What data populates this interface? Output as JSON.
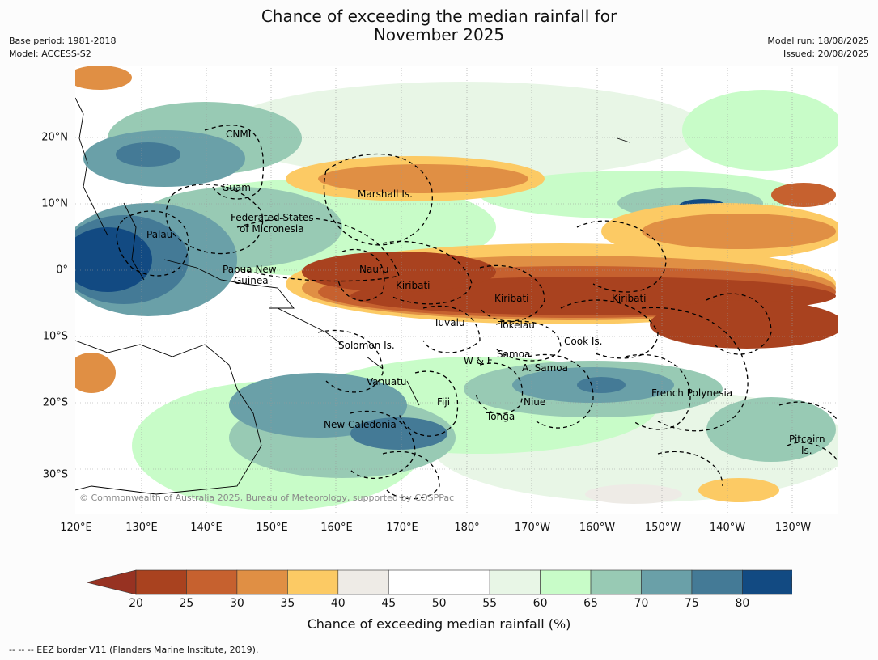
{
  "title_line1": "Chance of exceeding the median rainfall for",
  "title_line2": "November 2025",
  "base_period": "Base period: 1981-2018",
  "model": "Model: ACCESS-S2",
  "model_run": "Model run: 18/08/2025",
  "issued": "Issued: 20/08/2025",
  "lon_ticks": [
    "120°E",
    "130°E",
    "140°E",
    "150°E",
    "160°E",
    "170°E",
    "180°",
    "170°W",
    "160°W",
    "150°W",
    "140°W",
    "130°W"
  ],
  "lat_ticks": [
    "20°N",
    "10°N",
    "0°",
    "10°S",
    "20°S",
    "30°S"
  ],
  "region_labels": [
    "CNMI",
    "Guam",
    "Marshall Is.",
    "Federated States",
    "of Micronesia",
    "Palau",
    "Nauru",
    "Papua New",
    "Guinea",
    "Kiribati",
    "Kiribati",
    "Kiribati",
    "Tuvalu",
    "Tokelau",
    "Cook Is.",
    "Solomon Is.",
    "Samoa",
    "W & F",
    "A. Samoa",
    "Vanuatu",
    "Fiji",
    "Niue",
    "Tonga",
    "French Polynesia",
    "New Caledonia",
    "Pitcairn",
    "Is."
  ],
  "copyright": "© Commonwealth of Australia 2025, Bureau of Meteorology, supported by COSPPac",
  "colorbar": {
    "ticks": [
      "20",
      "25",
      "30",
      "35",
      "40",
      "45",
      "50",
      "55",
      "60",
      "65",
      "70",
      "75",
      "80"
    ],
    "colors": [
      "#a9421f",
      "#c6612f",
      "#e08f44",
      "#fcca64",
      "#eeebe6",
      "#ffffff",
      "#ffffff",
      "#e8f6e6",
      "#c8fcc8",
      "#98cab4",
      "#6aa0a8",
      "#447a96",
      "#124a82"
    ],
    "under_color": "#973222",
    "over_color": "#124a82",
    "label": "Chance of exceeding median rainfall (%)"
  },
  "footer": "--  --  -- EEZ border V11 (Flanders Marine Institute, 2019)."
}
